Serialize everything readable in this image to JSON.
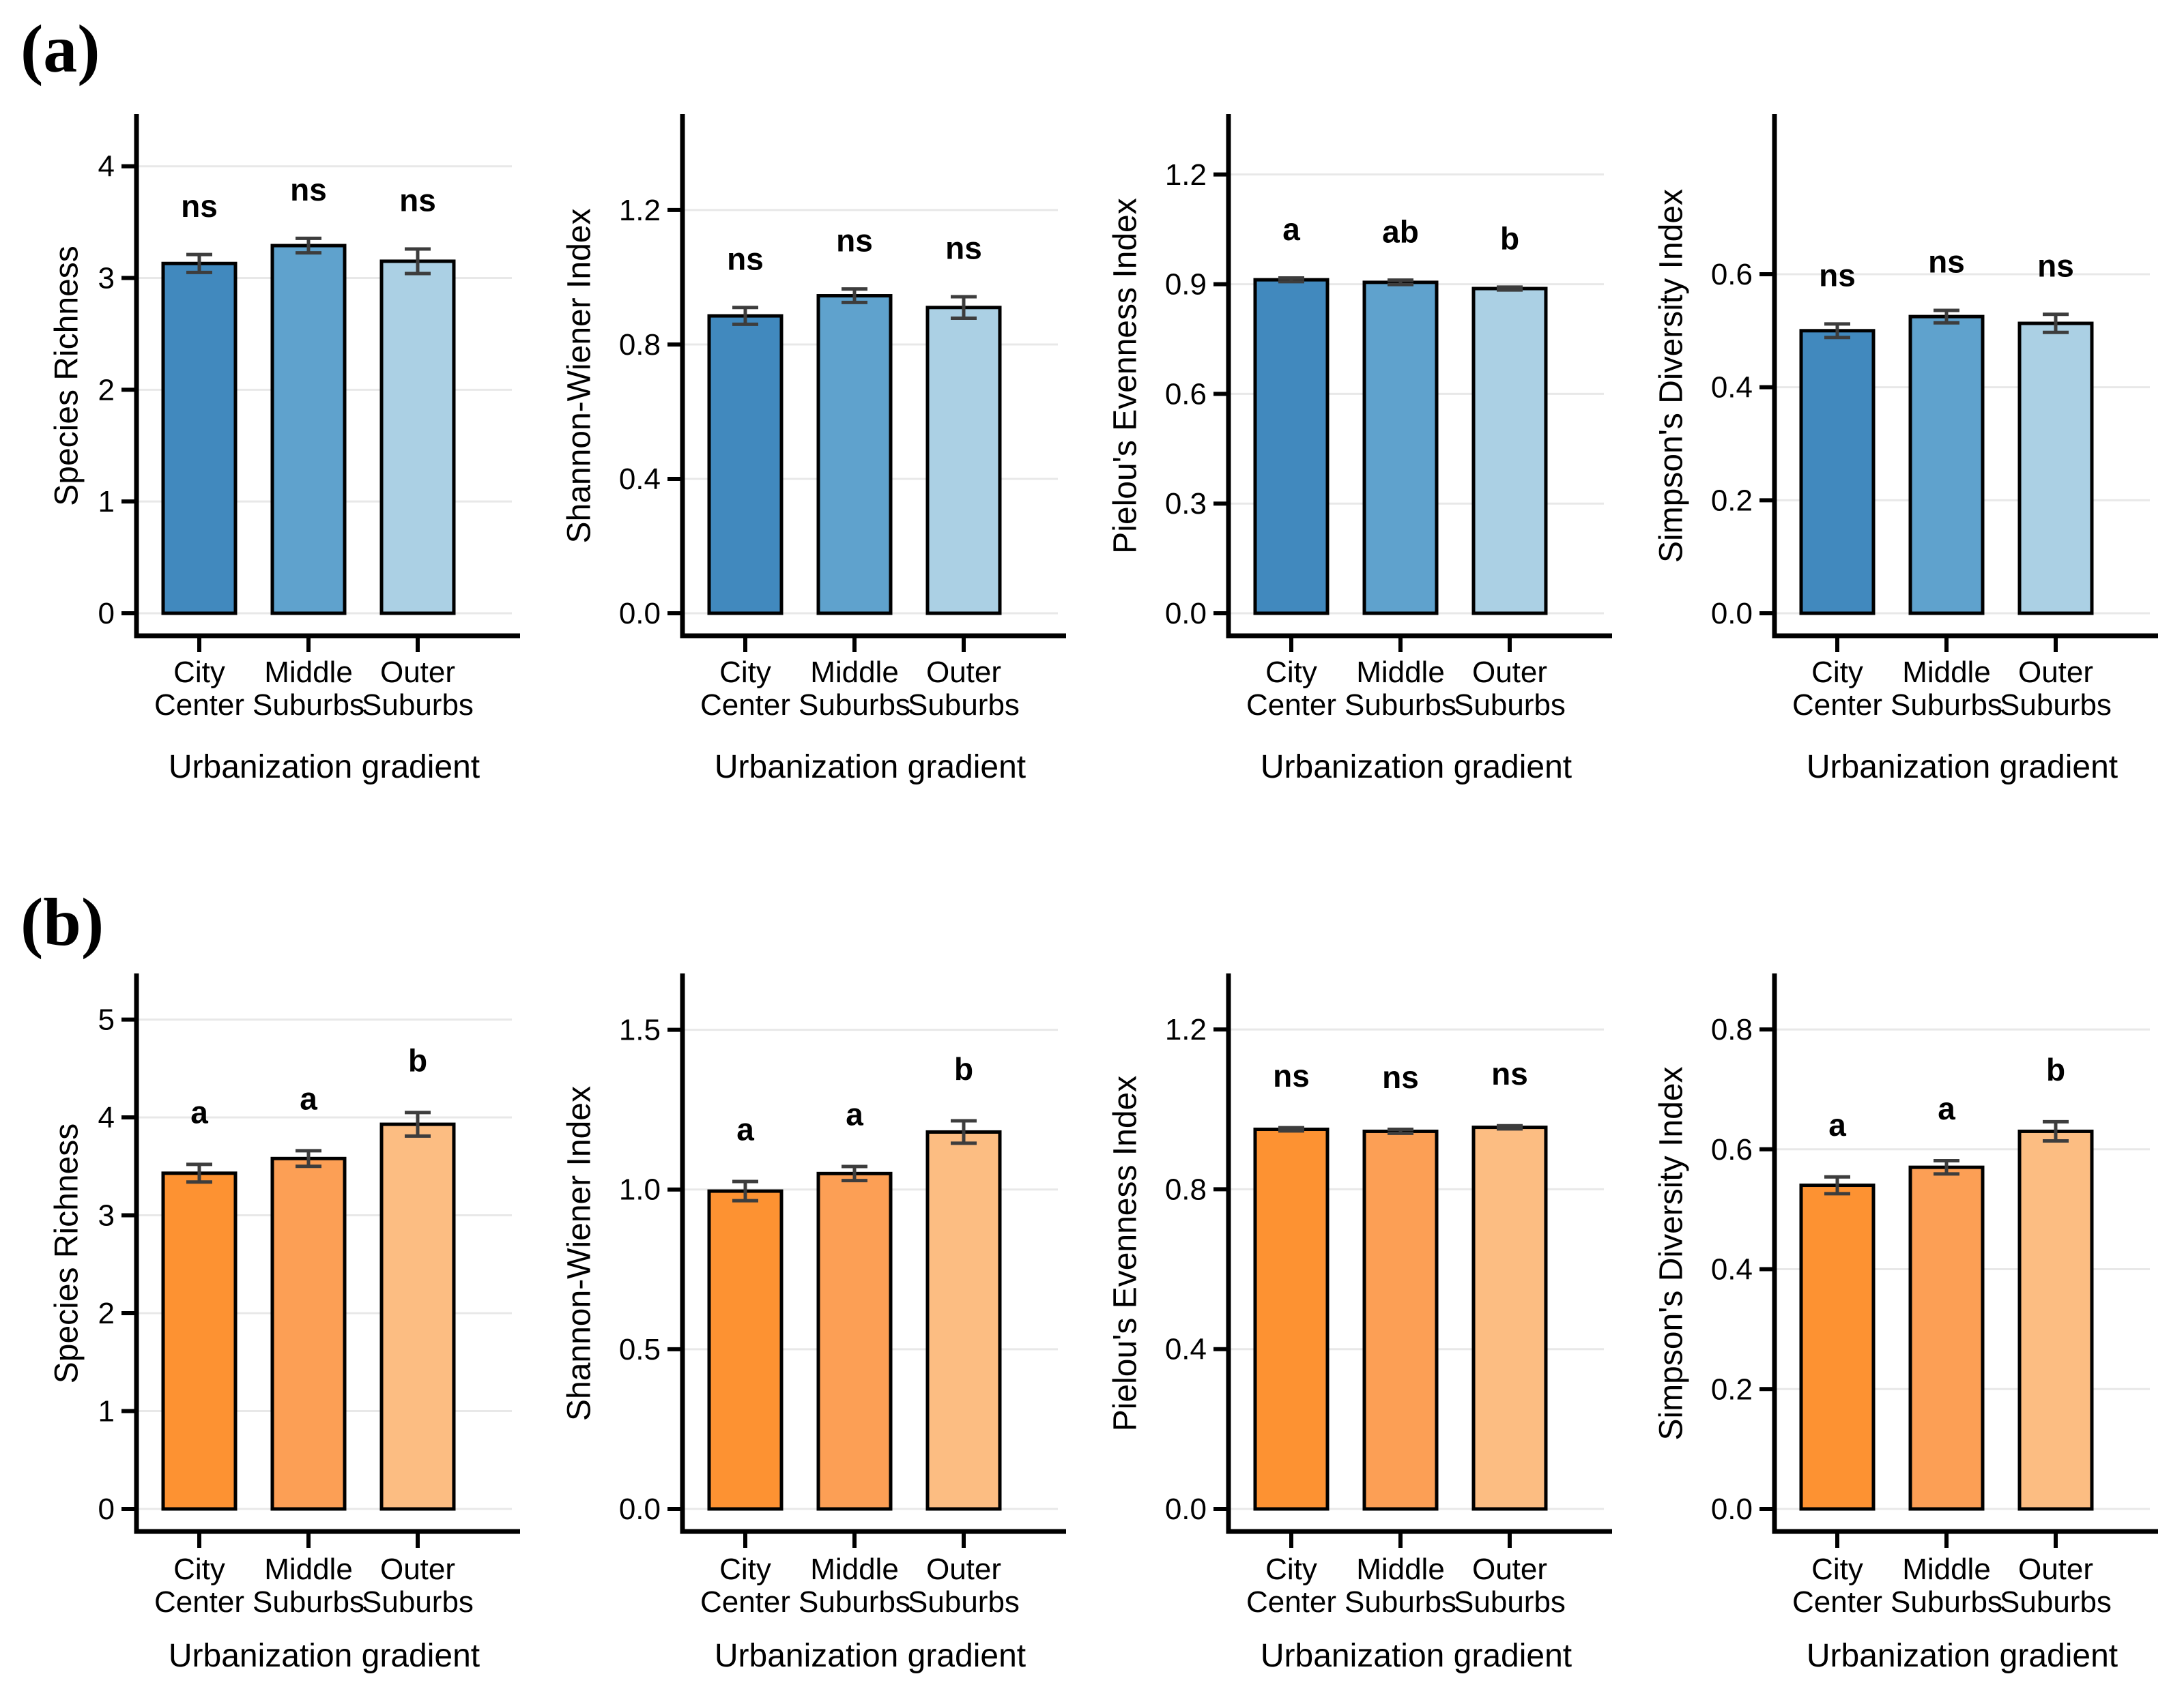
{
  "figure": {
    "panel_a_label": "(a)",
    "panel_b_label": "(b)"
  },
  "style": {
    "grid_color": "#e8e8e8",
    "error_color": "#3d3d3d",
    "bar_edge_color": "#000000",
    "axis_color": "#000000",
    "blue_palette": [
      "#4189be",
      "#5fa2cd",
      "#abd0e4"
    ],
    "orange_palette": [
      "#fd9232",
      "#fc9f55",
      "#fcbd82"
    ]
  },
  "chart_data": [
    {
      "id": "a-species-richness",
      "row": "a",
      "type": "bar",
      "ylabel": "Species Richness",
      "xlabel": "Urbanization gradient",
      "categories": [
        [
          "City",
          "Center"
        ],
        [
          "Middle",
          "Suburbs"
        ],
        [
          "Outer",
          "Suburbs"
        ]
      ],
      "values": [
        3.13,
        3.29,
        3.15
      ],
      "errors": [
        0.08,
        0.065,
        0.11
      ],
      "sig_labels": [
        "ns",
        "ns",
        "ns"
      ],
      "yticks": [
        0,
        1,
        2,
        3,
        4
      ],
      "ytick_labels": [
        "0",
        "1",
        "2",
        "3",
        "4"
      ],
      "ylim": [
        0,
        4.45
      ],
      "bar_colors": [
        "#4189be",
        "#5fa2cd",
        "#abd0e4"
      ]
    },
    {
      "id": "a-shannon-wiener",
      "row": "a",
      "type": "bar",
      "ylabel": "Shannon-Wiener Index",
      "xlabel": "Urbanization gradient",
      "categories": [
        [
          "City",
          "Center"
        ],
        [
          "Middle",
          "Suburbs"
        ],
        [
          "Outer",
          "Suburbs"
        ]
      ],
      "values": [
        0.885,
        0.945,
        0.91
      ],
      "errors": [
        0.025,
        0.02,
        0.032
      ],
      "sig_labels": [
        "ns",
        "ns",
        "ns"
      ],
      "yticks": [
        0,
        0.4,
        0.8,
        1.2
      ],
      "ytick_labels": [
        "0.0",
        "0.4",
        "0.8",
        "1.2"
      ],
      "ylim": [
        0,
        1.48
      ],
      "bar_colors": [
        "#4189be",
        "#5fa2cd",
        "#abd0e4"
      ]
    },
    {
      "id": "a-pielou-evenness",
      "row": "a",
      "type": "bar",
      "ylabel": "Pielou's Evenness Index",
      "xlabel": "Urbanization gradient",
      "categories": [
        [
          "City",
          "Center"
        ],
        [
          "Middle",
          "Suburbs"
        ],
        [
          "Outer",
          "Suburbs"
        ]
      ],
      "values": [
        0.912,
        0.905,
        0.888
      ],
      "errors": [
        0.005,
        0.006,
        0.004
      ],
      "sig_labels": [
        "a",
        "ab",
        "b"
      ],
      "yticks": [
        0,
        0.3,
        0.6,
        0.9,
        1.2
      ],
      "ytick_labels": [
        "0.0",
        "0.3",
        "0.6",
        "0.9",
        "1.2"
      ],
      "ylim": [
        0,
        1.36
      ],
      "bar_colors": [
        "#4189be",
        "#5fa2cd",
        "#abd0e4"
      ]
    },
    {
      "id": "a-simpson-diversity",
      "row": "a",
      "type": "bar",
      "ylabel": "Simpson's Diversity Index",
      "xlabel": "Urbanization gradient",
      "categories": [
        [
          "City",
          "Center"
        ],
        [
          "Middle",
          "Suburbs"
        ],
        [
          "Outer",
          "Suburbs"
        ]
      ],
      "values": [
        0.5,
        0.525,
        0.513
      ],
      "errors": [
        0.012,
        0.011,
        0.016
      ],
      "sig_labels": [
        "ns",
        "ns",
        "ns"
      ],
      "yticks": [
        0,
        0.2,
        0.4,
        0.6
      ],
      "ytick_labels": [
        "0.0",
        "0.2",
        "0.4",
        "0.6"
      ],
      "ylim": [
        0,
        0.88
      ],
      "bar_colors": [
        "#4189be",
        "#5fa2cd",
        "#abd0e4"
      ]
    },
    {
      "id": "b-species-richness",
      "row": "b",
      "type": "bar",
      "ylabel": "Species Richness",
      "xlabel": "Urbanization gradient",
      "categories": [
        [
          "City",
          "Center"
        ],
        [
          "Middle",
          "Suburbs"
        ],
        [
          "Outer",
          "Suburbs"
        ]
      ],
      "values": [
        3.43,
        3.58,
        3.93
      ],
      "errors": [
        0.09,
        0.08,
        0.12
      ],
      "sig_labels": [
        "a",
        "a",
        "b"
      ],
      "yticks": [
        0,
        1,
        2,
        3,
        4,
        5
      ],
      "ytick_labels": [
        "0",
        "1",
        "2",
        "3",
        "4",
        "5"
      ],
      "ylim": [
        0,
        5.45
      ],
      "bar_colors": [
        "#fd9232",
        "#fc9f55",
        "#fcbd82"
      ]
    },
    {
      "id": "b-shannon-wiener",
      "row": "b",
      "type": "bar",
      "ylabel": "Shannon-Wiener Index",
      "xlabel": "Urbanization gradient",
      "categories": [
        [
          "City",
          "Center"
        ],
        [
          "Middle",
          "Suburbs"
        ],
        [
          "Outer",
          "Suburbs"
        ]
      ],
      "values": [
        0.995,
        1.05,
        1.18
      ],
      "errors": [
        0.03,
        0.022,
        0.035
      ],
      "sig_labels": [
        "a",
        "a",
        "b"
      ],
      "yticks": [
        0,
        0.5,
        1.0,
        1.5
      ],
      "ytick_labels": [
        "0.0",
        "0.5",
        "1.0",
        "1.5"
      ],
      "ylim": [
        0,
        1.67
      ],
      "bar_colors": [
        "#fd9232",
        "#fc9f55",
        "#fcbd82"
      ]
    },
    {
      "id": "b-pielou-evenness",
      "row": "b",
      "type": "bar",
      "ylabel": "Pielou's Evenness Index",
      "xlabel": "Urbanization gradient",
      "categories": [
        [
          "City",
          "Center"
        ],
        [
          "Middle",
          "Suburbs"
        ],
        [
          "Outer",
          "Suburbs"
        ]
      ],
      "values": [
        0.95,
        0.945,
        0.955
      ],
      "errors": [
        0.004,
        0.005,
        0.004
      ],
      "sig_labels": [
        "ns",
        "ns",
        "ns"
      ],
      "yticks": [
        0,
        0.4,
        0.8,
        1.2
      ],
      "ytick_labels": [
        "0.0",
        "0.4",
        "0.8",
        "1.2"
      ],
      "ylim": [
        0,
        1.335
      ],
      "bar_colors": [
        "#fd9232",
        "#fc9f55",
        "#fcbd82"
      ]
    },
    {
      "id": "b-simpson-diversity",
      "row": "b",
      "type": "bar",
      "ylabel": "Simpson's Diversity Index",
      "xlabel": "Urbanization gradient",
      "categories": [
        [
          "City",
          "Center"
        ],
        [
          "Middle",
          "Suburbs"
        ],
        [
          "Outer",
          "Suburbs"
        ]
      ],
      "values": [
        0.54,
        0.57,
        0.63
      ],
      "errors": [
        0.014,
        0.011,
        0.016
      ],
      "sig_labels": [
        "a",
        "a",
        "b"
      ],
      "yticks": [
        0,
        0.2,
        0.4,
        0.6,
        0.8
      ],
      "ytick_labels": [
        "0.0",
        "0.2",
        "0.4",
        "0.6",
        "0.8"
      ],
      "ylim": [
        0,
        0.89
      ],
      "bar_colors": [
        "#fd9232",
        "#fc9f55",
        "#fcbd82"
      ]
    }
  ]
}
